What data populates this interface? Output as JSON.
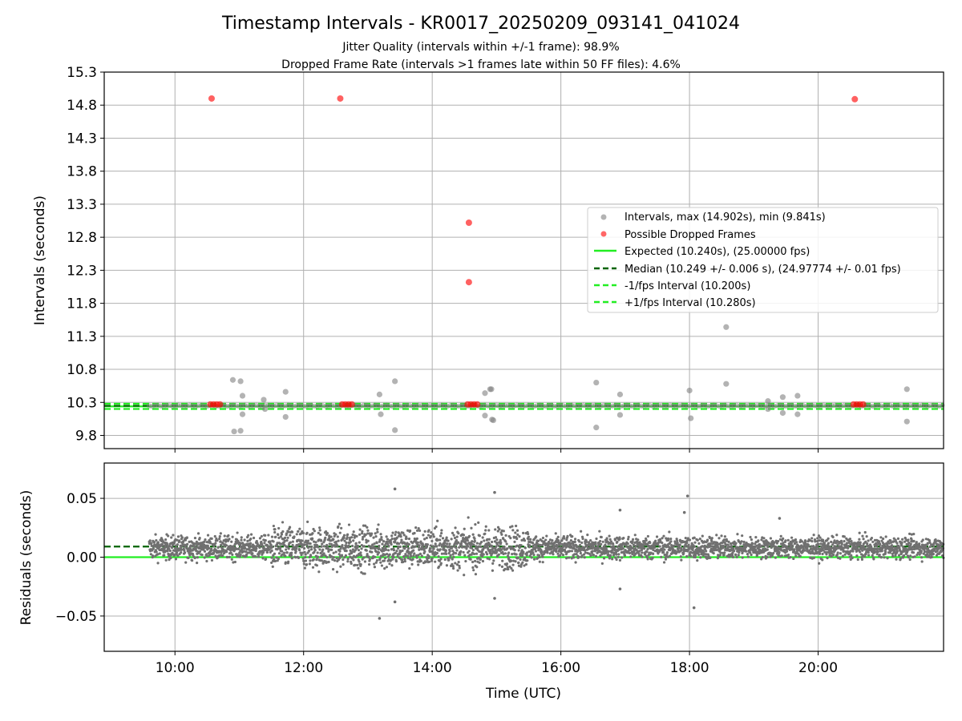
{
  "figure": {
    "title": "Timestamp Intervals - KR0017_20250209_093141_041024",
    "subtitle_1": "Jitter Quality (intervals within +/-1 frame): 98.9%",
    "subtitle_2": "Dropped Frame Rate (intervals >1 frames late within 50 FF files): 4.6%"
  },
  "chart_data": [
    {
      "type": "scatter",
      "ylabel": "Intervals (seconds)",
      "xlabel": "",
      "xlim_hours": [
        8.9,
        21.95
      ],
      "ylim": [
        9.6,
        15.3
      ],
      "yticks": [
        "9.8",
        "10.3",
        "10.8",
        "11.3",
        "11.8",
        "12.3",
        "12.8",
        "13.3",
        "13.8",
        "14.3",
        "14.8",
        "15.3"
      ],
      "grid": true,
      "legend_location": "center-right",
      "legend": [
        "Intervals, max (14.902s), min (9.841s)",
        "Possible Dropped Frames",
        "Expected (10.240s), (25.00000 fps)",
        "Median (10.249 +/- 0.006 s), (24.97774 +/- 0.01 fps)",
        "-1/fps Interval (10.200s)",
        "+1/fps Interval (10.280s)"
      ],
      "reference_lines": {
        "expected": 10.24,
        "median": 10.249,
        "minus_1fps": 10.2,
        "plus_1fps": 10.28
      },
      "series": [
        {
          "name": "Intervals, max (14.902s), min (9.841s)",
          "color": "#808080",
          "points": [
            [
              10.9,
              10.64
            ],
            [
              11.02,
              10.62
            ],
            [
              11.05,
              10.4
            ],
            [
              11.05,
              10.12
            ],
            [
              10.92,
              9.86
            ],
            [
              11.02,
              9.87
            ],
            [
              11.38,
              10.34
            ],
            [
              11.4,
              10.2
            ],
            [
              11.72,
              10.46
            ],
            [
              11.72,
              10.08
            ],
            [
              13.18,
              10.42
            ],
            [
              13.2,
              10.12
            ],
            [
              13.42,
              10.62
            ],
            [
              13.42,
              9.88
            ],
            [
              14.82,
              10.44
            ],
            [
              14.9,
              10.5
            ],
            [
              14.92,
              10.5
            ],
            [
              14.82,
              10.1
            ],
            [
              14.93,
              10.04
            ],
            [
              14.95,
              10.03
            ],
            [
              16.55,
              10.6
            ],
            [
              16.55,
              9.92
            ],
            [
              16.92,
              10.42
            ],
            [
              16.92,
              10.11
            ],
            [
              18.0,
              10.48
            ],
            [
              18.02,
              10.06
            ],
            [
              18.57,
              10.58
            ],
            [
              18.57,
              11.44
            ],
            [
              19.22,
              10.32
            ],
            [
              19.22,
              10.2
            ],
            [
              19.45,
              10.38
            ],
            [
              19.45,
              10.14
            ],
            [
              19.68,
              10.4
            ],
            [
              19.68,
              10.12
            ],
            [
              21.38,
              10.5
            ],
            [
              21.38,
              10.01
            ]
          ]
        },
        {
          "name": "Possible Dropped Frames",
          "color": "#ff0000",
          "points": [
            [
              10.57,
              14.9
            ],
            [
              12.57,
              14.9
            ],
            [
              20.57,
              14.89
            ],
            [
              14.57,
              13.02
            ],
            [
              14.57,
              12.12
            ],
            [
              10.55,
              10.27
            ],
            [
              10.6,
              10.27
            ],
            [
              10.65,
              10.27
            ],
            [
              10.7,
              10.27
            ],
            [
              12.6,
              10.27
            ],
            [
              12.65,
              10.27
            ],
            [
              12.7,
              10.27
            ],
            [
              12.75,
              10.27
            ],
            [
              14.55,
              10.27
            ],
            [
              14.6,
              10.27
            ],
            [
              14.65,
              10.27
            ],
            [
              14.7,
              10.27
            ],
            [
              20.55,
              10.27
            ],
            [
              20.6,
              10.27
            ],
            [
              20.65,
              10.27
            ],
            [
              20.7,
              10.27
            ]
          ]
        }
      ]
    },
    {
      "type": "scatter",
      "ylabel": "Residuals (seconds)",
      "xlabel": "Time (UTC)",
      "xlim_hours": [
        8.9,
        21.95
      ],
      "ylim": [
        -0.08,
        0.08
      ],
      "yticks": [
        "−0.05",
        "0.00",
        "0.05"
      ],
      "xticks": [
        "10:00",
        "12:00",
        "14:00",
        "16:00",
        "18:00",
        "20:00"
      ],
      "grid": true,
      "median_residual": 0.009,
      "expected_residual": 0.0,
      "series": [
        {
          "name": "Residuals",
          "color": "#707070",
          "x_range_hours": [
            9.6,
            21.95
          ],
          "band_center": 0.008,
          "band_spread_by_region": [
            {
              "from": 9.6,
              "to": 11.5,
              "spread": 0.009
            },
            {
              "from": 11.5,
              "to": 15.5,
              "spread": 0.016
            },
            {
              "from": 15.5,
              "to": 18.5,
              "spread": 0.009
            },
            {
              "from": 18.5,
              "to": 21.95,
              "spread": 0.008
            }
          ],
          "outliers": [
            [
              13.42,
              0.058
            ],
            [
              14.97,
              0.055
            ],
            [
              13.18,
              -0.052
            ],
            [
              13.42,
              -0.038
            ],
            [
              14.97,
              -0.035
            ],
            [
              17.97,
              0.052
            ],
            [
              17.92,
              0.038
            ],
            [
              16.92,
              0.04
            ],
            [
              18.07,
              -0.043
            ],
            [
              16.92,
              -0.027
            ],
            [
              19.4,
              0.033
            ]
          ]
        }
      ]
    }
  ],
  "colors": {
    "interval": "#808080",
    "dropped": "#ff0000",
    "expected": "#22ee22",
    "median": "#006400",
    "fps_band": "#22ee22",
    "grid": "#b0b0b0"
  }
}
